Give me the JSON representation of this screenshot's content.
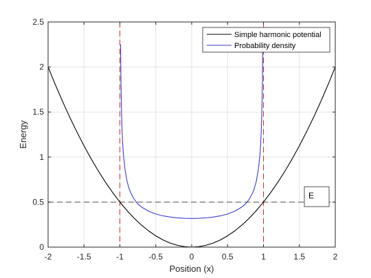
{
  "chart_data": {
    "type": "line",
    "xlabel": "Position (x)",
    "ylabel": "Energy",
    "xlim": [
      -2,
      2
    ],
    "ylim": [
      0,
      2.5
    ],
    "xticks": [
      "-2",
      "-1.5",
      "-1",
      "-0.5",
      "0",
      "0.5",
      "1",
      "1.5",
      "2"
    ],
    "yticks": [
      "0",
      "0.5",
      "1",
      "1.5",
      "2",
      "2.5"
    ],
    "grid": true,
    "legend_position": "top-right",
    "series": [
      {
        "name": "Simple harmonic potential",
        "color": "#000000",
        "x": [
          -2.0,
          -1.9,
          -1.8,
          -1.7,
          -1.6,
          -1.5,
          -1.4,
          -1.3,
          -1.2,
          -1.1,
          -1.0,
          -0.9,
          -0.8,
          -0.7,
          -0.6,
          -0.5,
          -0.4,
          -0.3,
          -0.2,
          -0.1,
          0.0,
          0.1,
          0.2,
          0.3,
          0.4,
          0.5,
          0.6,
          0.7,
          0.8,
          0.9,
          1.0,
          1.1,
          1.2,
          1.3,
          1.4,
          1.5,
          1.6,
          1.7,
          1.8,
          1.9,
          2.0
        ],
        "y": [
          2.0,
          1.805,
          1.62,
          1.445,
          1.28,
          1.125,
          0.98,
          0.845,
          0.72,
          0.605,
          0.5,
          0.405,
          0.32,
          0.245,
          0.18,
          0.125,
          0.08,
          0.045,
          0.02,
          0.005,
          0.0,
          0.005,
          0.02,
          0.045,
          0.08,
          0.125,
          0.18,
          0.245,
          0.32,
          0.405,
          0.5,
          0.605,
          0.72,
          0.845,
          0.98,
          1.125,
          1.28,
          1.445,
          1.62,
          1.805,
          2.0
        ]
      },
      {
        "name": "Probability density",
        "color": "#3b3bd6",
        "x": [
          -0.99,
          -0.985,
          -0.98,
          -0.97,
          -0.96,
          -0.95,
          -0.93,
          -0.9,
          -0.87,
          -0.85,
          -0.8,
          -0.75,
          -0.7,
          -0.6,
          -0.5,
          -0.4,
          -0.3,
          -0.2,
          -0.1,
          0.0,
          0.1,
          0.2,
          0.3,
          0.4,
          0.5,
          0.6,
          0.7,
          0.75,
          0.8,
          0.85,
          0.87,
          0.9,
          0.93,
          0.95,
          0.96,
          0.97,
          0.98,
          0.985,
          0.99
        ],
        "y": [
          2.25,
          1.84,
          1.6,
          1.3,
          1.13,
          1.02,
          0.87,
          0.73,
          0.645,
          0.605,
          0.53,
          0.48,
          0.446,
          0.398,
          0.368,
          0.347,
          0.334,
          0.325,
          0.32,
          0.318,
          0.32,
          0.325,
          0.334,
          0.347,
          0.368,
          0.398,
          0.446,
          0.48,
          0.53,
          0.605,
          0.645,
          0.73,
          0.87,
          1.02,
          1.13,
          1.3,
          1.6,
          1.84,
          2.25
        ]
      }
    ],
    "reference_lines": [
      {
        "orientation": "vertical",
        "value": -1,
        "color": "#d62728",
        "style": "dashed"
      },
      {
        "orientation": "vertical",
        "value": 1,
        "color": "#d62728",
        "style": "dashed"
      },
      {
        "orientation": "horizontal",
        "value": 0.5,
        "color": "#555555",
        "style": "dashed"
      }
    ],
    "annotations": [
      {
        "text": "E"
      }
    ]
  }
}
